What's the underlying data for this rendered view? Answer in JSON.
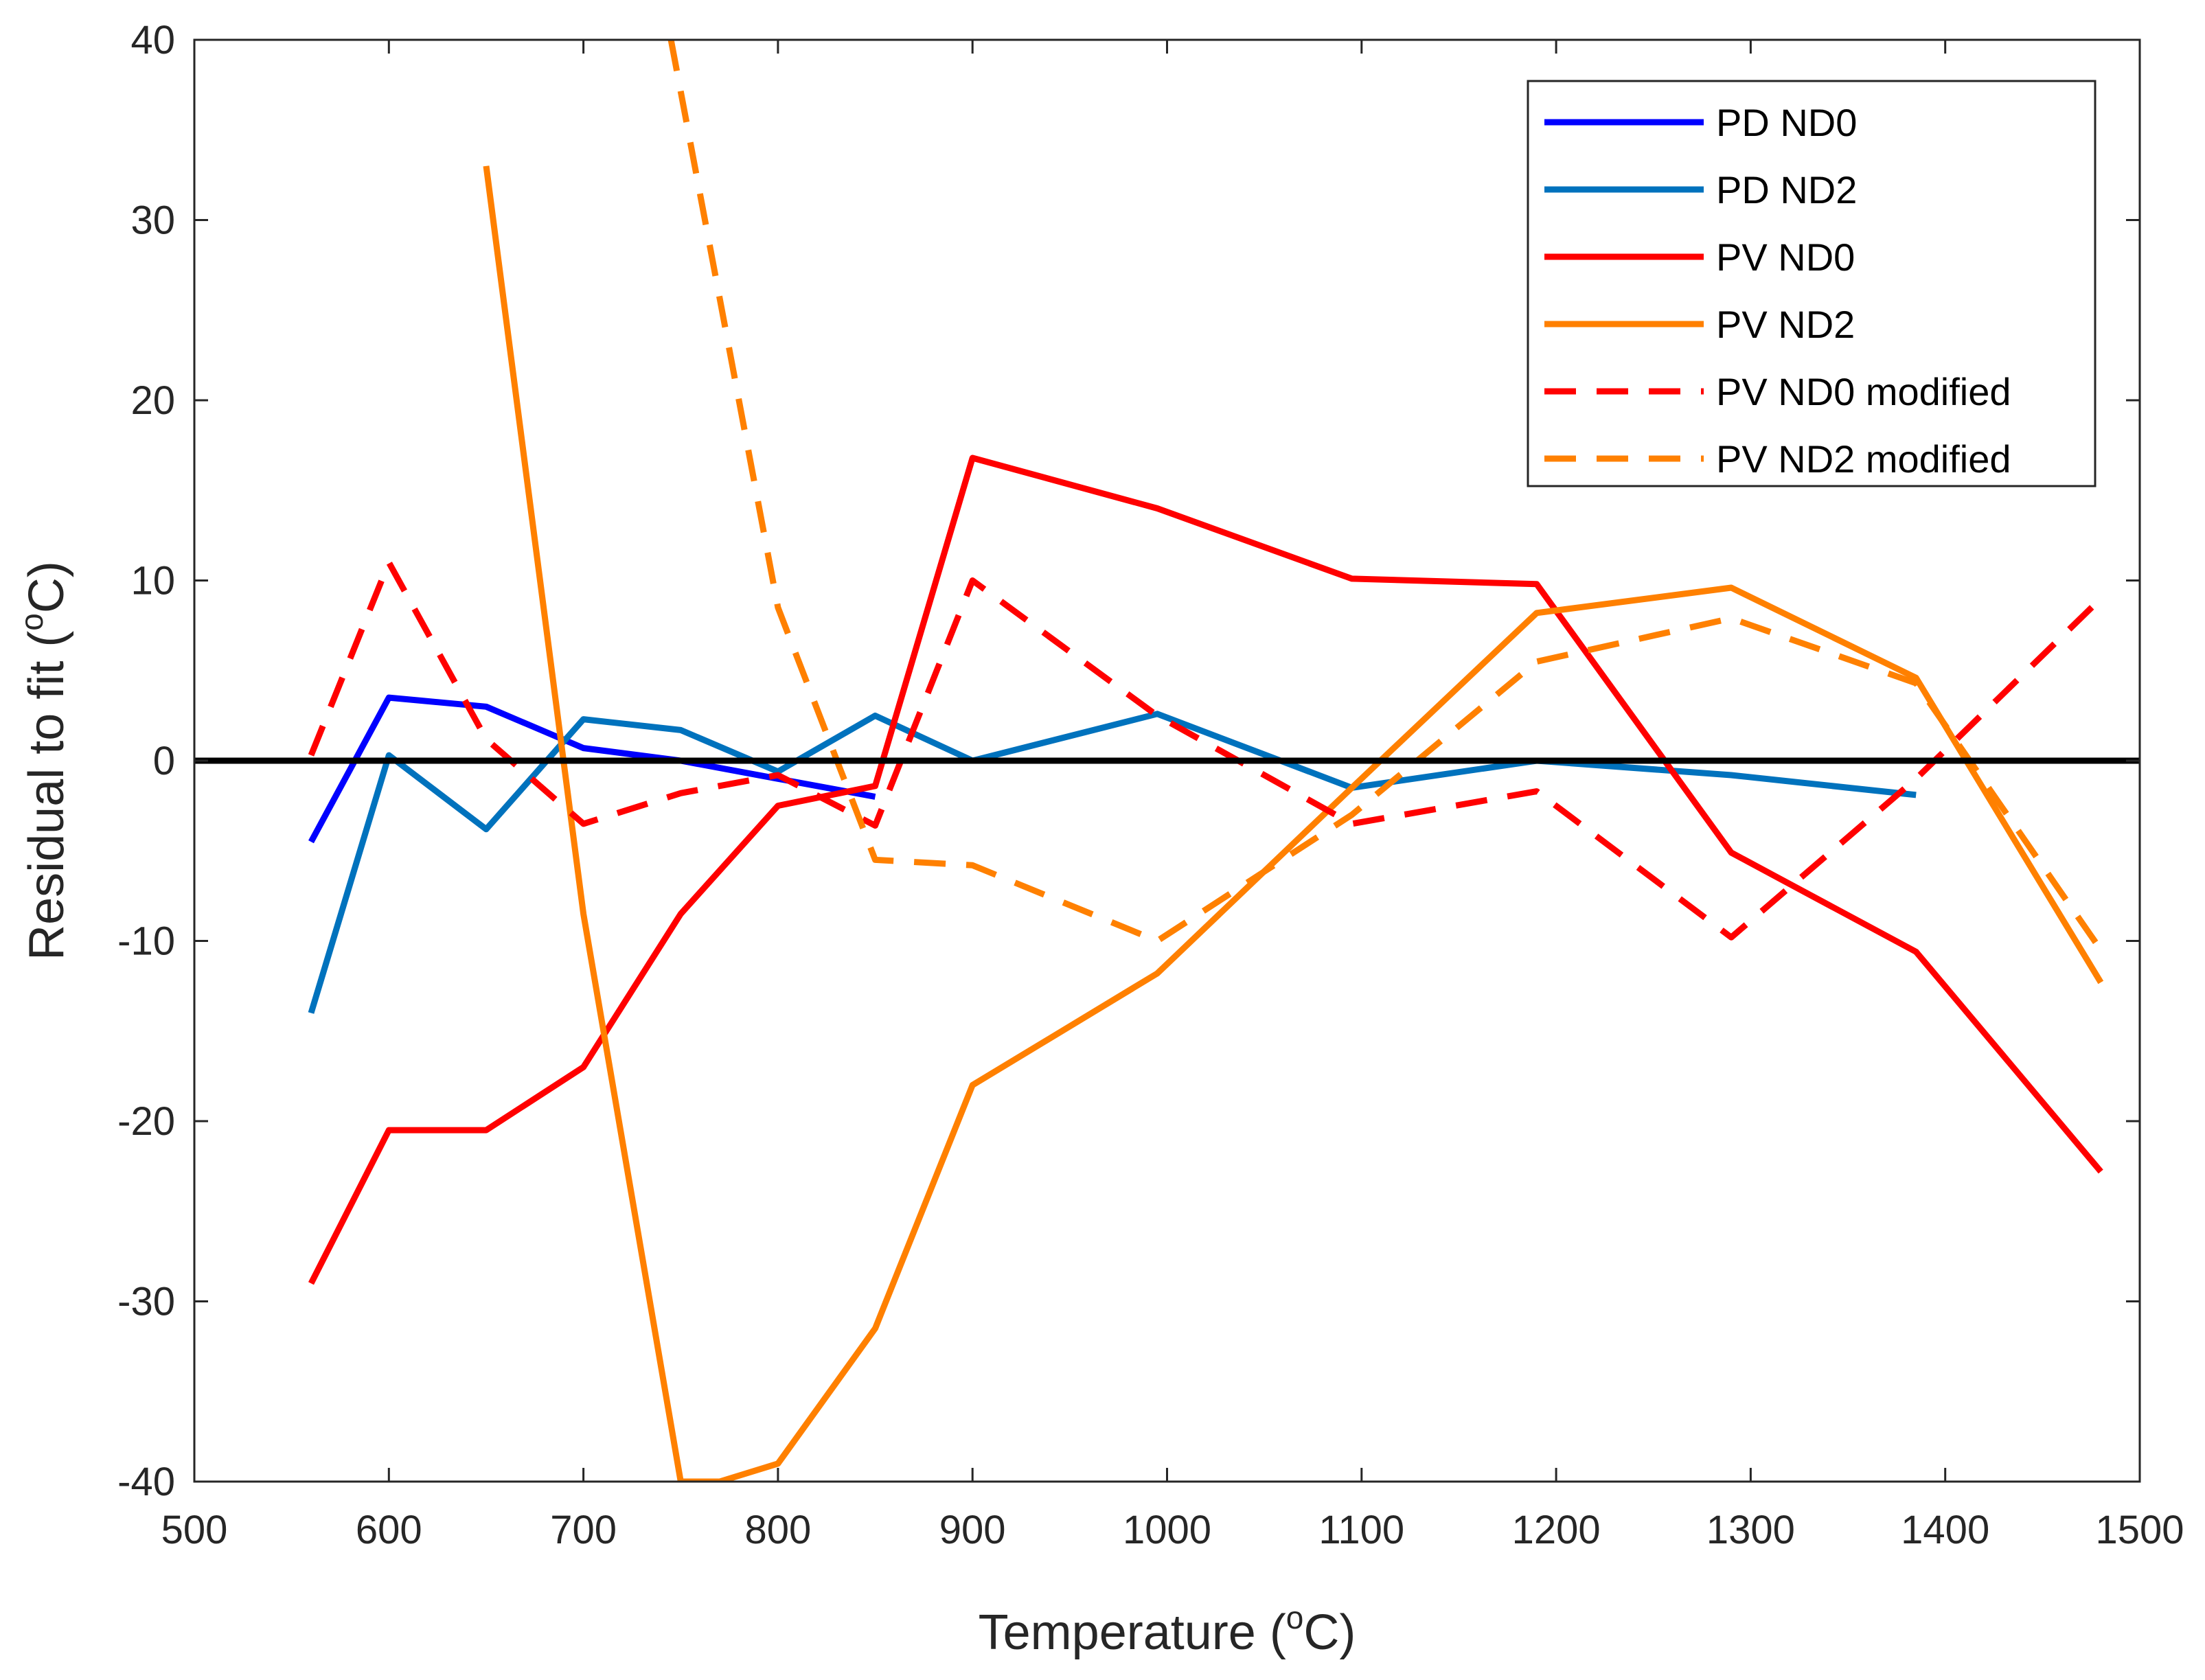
{
  "chart_data": {
    "type": "line",
    "title": "",
    "xlabel": {
      "pre": "Temperature (",
      "sup": "o",
      "post": "C)"
    },
    "ylabel": {
      "pre": "Residual to fit (",
      "sup": "o",
      "post": "C)"
    },
    "xlim": [
      500,
      1500
    ],
    "ylim": [
      -40,
      40
    ],
    "xticks": [
      500,
      600,
      700,
      800,
      900,
      1000,
      1100,
      1200,
      1300,
      1400,
      1500
    ],
    "yticks": [
      -40,
      -30,
      -20,
      -10,
      0,
      10,
      20,
      30,
      40
    ],
    "grid": false,
    "legend_position": "top-right",
    "zero_line": {
      "y": 0,
      "color": "#000000"
    },
    "series": [
      {
        "name": "PD ND0",
        "color": "#0000ff",
        "dash": "solid",
        "x": [
          560,
          600,
          650,
          700,
          750,
          800,
          850
        ],
        "y": [
          -4.5,
          3.5,
          3.0,
          0.7,
          0,
          -1.0,
          -2.0
        ]
      },
      {
        "name": "PD ND2",
        "color": "#0072bd",
        "dash": "solid",
        "x": [
          560,
          600,
          650,
          700,
          750,
          800,
          850,
          900,
          995,
          1095,
          1190,
          1290,
          1385
        ],
        "y": [
          -14,
          0.3,
          -3.8,
          2.3,
          1.7,
          -0.6,
          2.5,
          0,
          2.6,
          -1.5,
          0,
          -0.8,
          -1.9
        ]
      },
      {
        "name": "PV ND0",
        "color": "#ff0000",
        "dash": "solid",
        "x": [
          560,
          600,
          650,
          700,
          750,
          800,
          850,
          900,
          995,
          1095,
          1190,
          1290,
          1385,
          1480
        ],
        "y": [
          -29,
          -20.5,
          -20.5,
          -17,
          -8.5,
          -2.5,
          -1.4,
          16.8,
          14,
          10.1,
          9.8,
          -5.1,
          -10.6,
          -22.8
        ]
      },
      {
        "name": "PV ND2",
        "color": "#ff8000",
        "dash": "solid",
        "x": [
          650,
          700,
          750,
          770,
          800,
          850,
          900,
          995,
          1095,
          1190,
          1290,
          1385,
          1480
        ],
        "y": [
          33,
          -8.5,
          -40,
          -40,
          -39,
          -31.5,
          -18,
          -11.8,
          -1.5,
          8.2,
          9.6,
          4.6,
          -12.3
        ]
      },
      {
        "name": "PV ND0 modified",
        "color": "#ff0000",
        "dash": "dashed",
        "x": [
          560,
          600,
          650,
          700,
          750,
          800,
          850,
          900,
          995,
          1095,
          1190,
          1290,
          1385,
          1480
        ],
        "y": [
          0.3,
          11,
          1.2,
          -3.5,
          -1.8,
          -0.8,
          -3.6,
          10,
          2.5,
          -3.5,
          -1.7,
          -9.8,
          -1.0,
          9.0
        ]
      },
      {
        "name": "PV ND2 modified",
        "color": "#ff8000",
        "dash": "dashed",
        "x": [
          745,
          800,
          850,
          900,
          995,
          1095,
          1190,
          1290,
          1385,
          1480
        ],
        "y": [
          40,
          8.5,
          -5.5,
          -5.8,
          -10,
          -3,
          5.5,
          7.9,
          4.3,
          -10.5
        ]
      }
    ]
  }
}
